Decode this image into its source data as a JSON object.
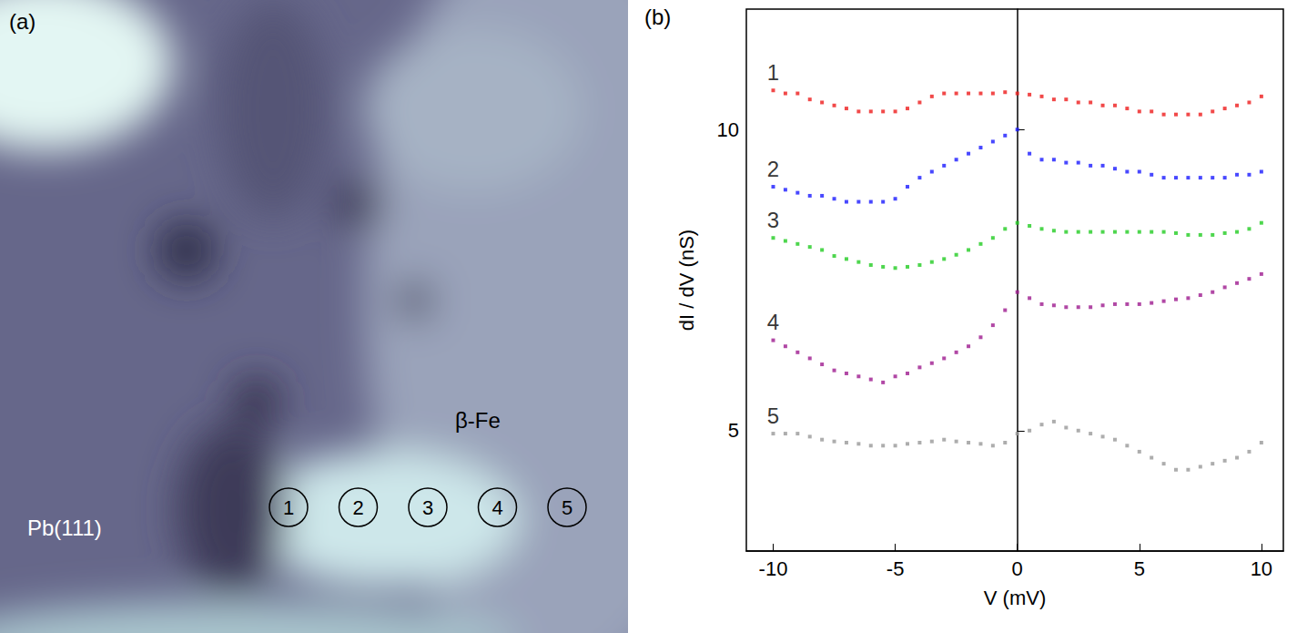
{
  "image_panel": {
    "label": "(a)",
    "texts": [
      "Pb(111)",
      "β-Fe"
    ],
    "markers": [
      "1",
      "2",
      "3",
      "4",
      "5"
    ]
  },
  "chart_data": {
    "type": "scatter",
    "label": "(b)",
    "x_label": "V (mV)",
    "y_label": "dI / dV (nS)",
    "xlim": [
      -11.1,
      10.9
    ],
    "ylim": [
      3,
      12
    ],
    "xticks": [
      -10,
      -5,
      0,
      5,
      10
    ],
    "yticks": [
      5,
      10
    ],
    "grid": false,
    "marker": "square",
    "x": [
      -10,
      -9.5,
      -9,
      -8.5,
      -8,
      -7.5,
      -7,
      -6.5,
      -6,
      -5.5,
      -5,
      -4.5,
      -4,
      -3.5,
      -3,
      -2.5,
      -2,
      -1.5,
      -1,
      -0.5,
      0,
      0.5,
      1,
      1.5,
      2,
      2.5,
      3,
      3.5,
      4,
      4.5,
      5,
      5.5,
      6,
      6.5,
      7,
      7.5,
      8,
      8.5,
      9,
      9.5,
      10
    ],
    "series": [
      {
        "name": "1",
        "color": "#ee1c1c",
        "values": [
          10.65,
          10.6,
          10.6,
          10.5,
          10.45,
          10.4,
          10.35,
          10.3,
          10.3,
          10.3,
          10.3,
          10.35,
          10.45,
          10.55,
          10.6,
          10.6,
          10.6,
          10.6,
          10.6,
          10.62,
          10.6,
          10.58,
          10.55,
          10.5,
          10.5,
          10.45,
          10.45,
          10.4,
          10.4,
          10.35,
          10.3,
          10.3,
          10.25,
          10.25,
          10.25,
          10.25,
          10.3,
          10.35,
          10.4,
          10.45,
          10.55
        ]
      },
      {
        "name": "2",
        "color": "#1a1aff",
        "values": [
          9.05,
          9.0,
          8.95,
          8.9,
          8.9,
          8.85,
          8.8,
          8.8,
          8.8,
          8.8,
          8.85,
          9.05,
          9.2,
          9.3,
          9.4,
          9.5,
          9.6,
          9.7,
          9.8,
          9.9,
          10.0,
          9.6,
          9.5,
          9.5,
          9.45,
          9.45,
          9.4,
          9.4,
          9.35,
          9.3,
          9.3,
          9.25,
          9.2,
          9.2,
          9.2,
          9.2,
          9.2,
          9.2,
          9.25,
          9.25,
          9.3
        ]
      },
      {
        "name": "3",
        "color": "#22cc22",
        "values": [
          8.2,
          8.15,
          8.1,
          8.05,
          8.0,
          7.9,
          7.85,
          7.8,
          7.75,
          7.72,
          7.7,
          7.72,
          7.75,
          7.8,
          7.85,
          7.92,
          8.0,
          8.1,
          8.2,
          8.35,
          8.45,
          8.4,
          8.35,
          8.32,
          8.3,
          8.3,
          8.3,
          8.3,
          8.3,
          8.3,
          8.3,
          8.3,
          8.3,
          8.28,
          8.25,
          8.25,
          8.25,
          8.28,
          8.3,
          8.35,
          8.45
        ]
      },
      {
        "name": "4",
        "color": "#9e1a8e",
        "values": [
          6.5,
          6.4,
          6.3,
          6.2,
          6.1,
          6.0,
          5.95,
          5.9,
          5.85,
          5.8,
          5.9,
          5.95,
          6.05,
          6.12,
          6.2,
          6.3,
          6.4,
          6.55,
          6.75,
          7.0,
          7.3,
          7.2,
          7.1,
          7.08,
          7.05,
          7.05,
          7.05,
          7.08,
          7.1,
          7.1,
          7.1,
          7.12,
          7.15,
          7.18,
          7.2,
          7.25,
          7.3,
          7.38,
          7.45,
          7.52,
          7.6
        ]
      },
      {
        "name": "5",
        "color": "#999999",
        "values": [
          4.95,
          4.95,
          4.95,
          4.9,
          4.85,
          4.82,
          4.8,
          4.78,
          4.75,
          4.75,
          4.75,
          4.78,
          4.8,
          4.82,
          4.85,
          4.82,
          4.8,
          4.78,
          4.75,
          4.8,
          4.95,
          5.0,
          5.1,
          5.15,
          5.05,
          5.0,
          4.95,
          4.9,
          4.85,
          4.75,
          4.65,
          4.55,
          4.45,
          4.35,
          4.35,
          4.4,
          4.45,
          4.5,
          4.55,
          4.65,
          4.8
        ]
      }
    ]
  }
}
